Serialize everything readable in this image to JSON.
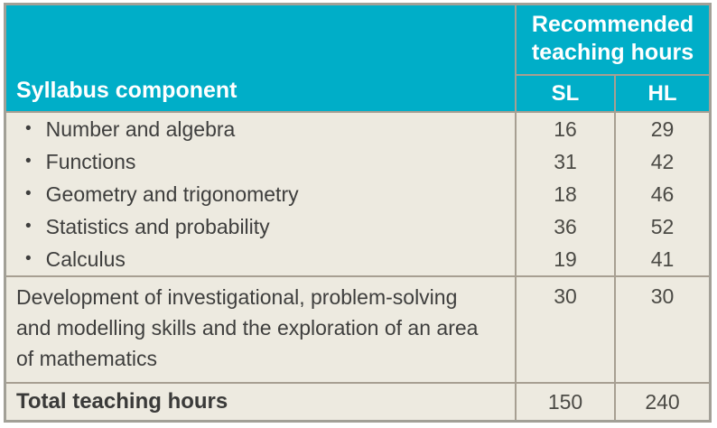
{
  "table": {
    "header": {
      "syllabus_component": "Syllabus component",
      "recommended": "Recommended teaching hours",
      "sl": "SL",
      "hl": "HL"
    },
    "rows": [
      {
        "label": "Number and algebra",
        "sl": "16",
        "hl": "29"
      },
      {
        "label": "Functions",
        "sl": "31",
        "hl": "42"
      },
      {
        "label": "Geometry and trigonometry",
        "sl": "18",
        "hl": "46"
      },
      {
        "label": "Statistics and probability",
        "sl": "36",
        "hl": "52"
      },
      {
        "label": "Calculus",
        "sl": "19",
        "hl": "41"
      }
    ],
    "development_row": {
      "label": "Development of investigational, problem-solving and modelling skills and the exploration of an area of mathematics",
      "sl": "30",
      "hl": "30"
    },
    "total_row": {
      "label": "Total teaching hours",
      "sl": "150",
      "hl": "240"
    },
    "bullet_glyph": "•"
  },
  "colors": {
    "header_teal": "#00AEC8",
    "body_cream": "#EDEAE0",
    "grid_line": "#A79F92",
    "outer_border": "#A2A097",
    "header_text": "#FFFFFF",
    "body_text": "#3E3E3D"
  }
}
